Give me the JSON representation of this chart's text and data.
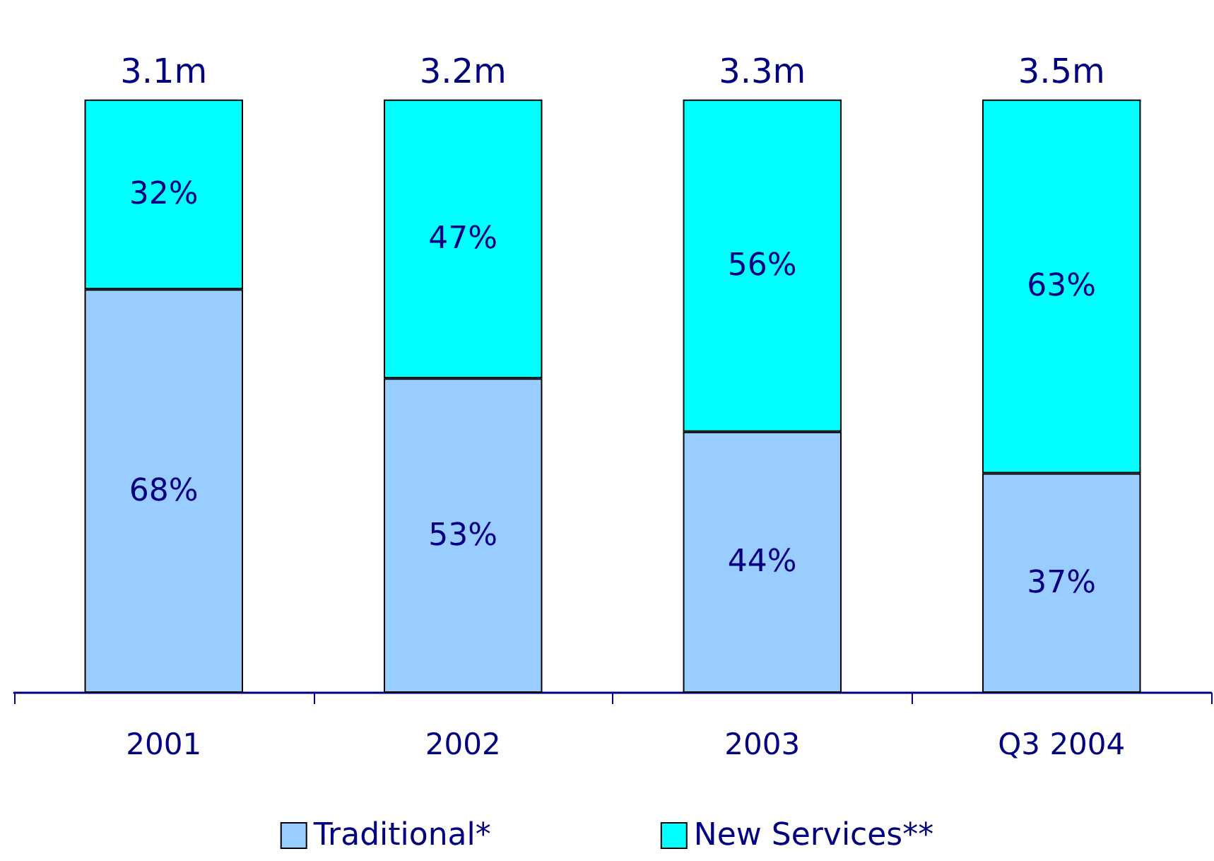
{
  "chart_data": {
    "type": "bar",
    "stacked": true,
    "categories": [
      "2001",
      "2002",
      "2003",
      "Q3 2004"
    ],
    "series": [
      {
        "name": "Traditional*",
        "color": "#99ccff",
        "values": [
          68,
          53,
          44,
          37
        ],
        "value_labels": [
          "68%",
          "53%",
          "44%",
          "37%"
        ]
      },
      {
        "name": "New Services**",
        "color": "#00ffff",
        "values": [
          32,
          47,
          56,
          63
        ],
        "value_labels": [
          "32%",
          "47%",
          "56%",
          "63%"
        ]
      }
    ],
    "annotations": [
      {
        "text": "3.1m",
        "x": "2001",
        "y": 100
      },
      {
        "text": "3.2m",
        "x": "2002",
        "y": 100
      },
      {
        "text": "3.3m",
        "x": "2003",
        "y": 100
      },
      {
        "text": "3.5m",
        "x": "Q3 2004",
        "y": 100
      }
    ],
    "legend": "bottom",
    "grid": false
  }
}
